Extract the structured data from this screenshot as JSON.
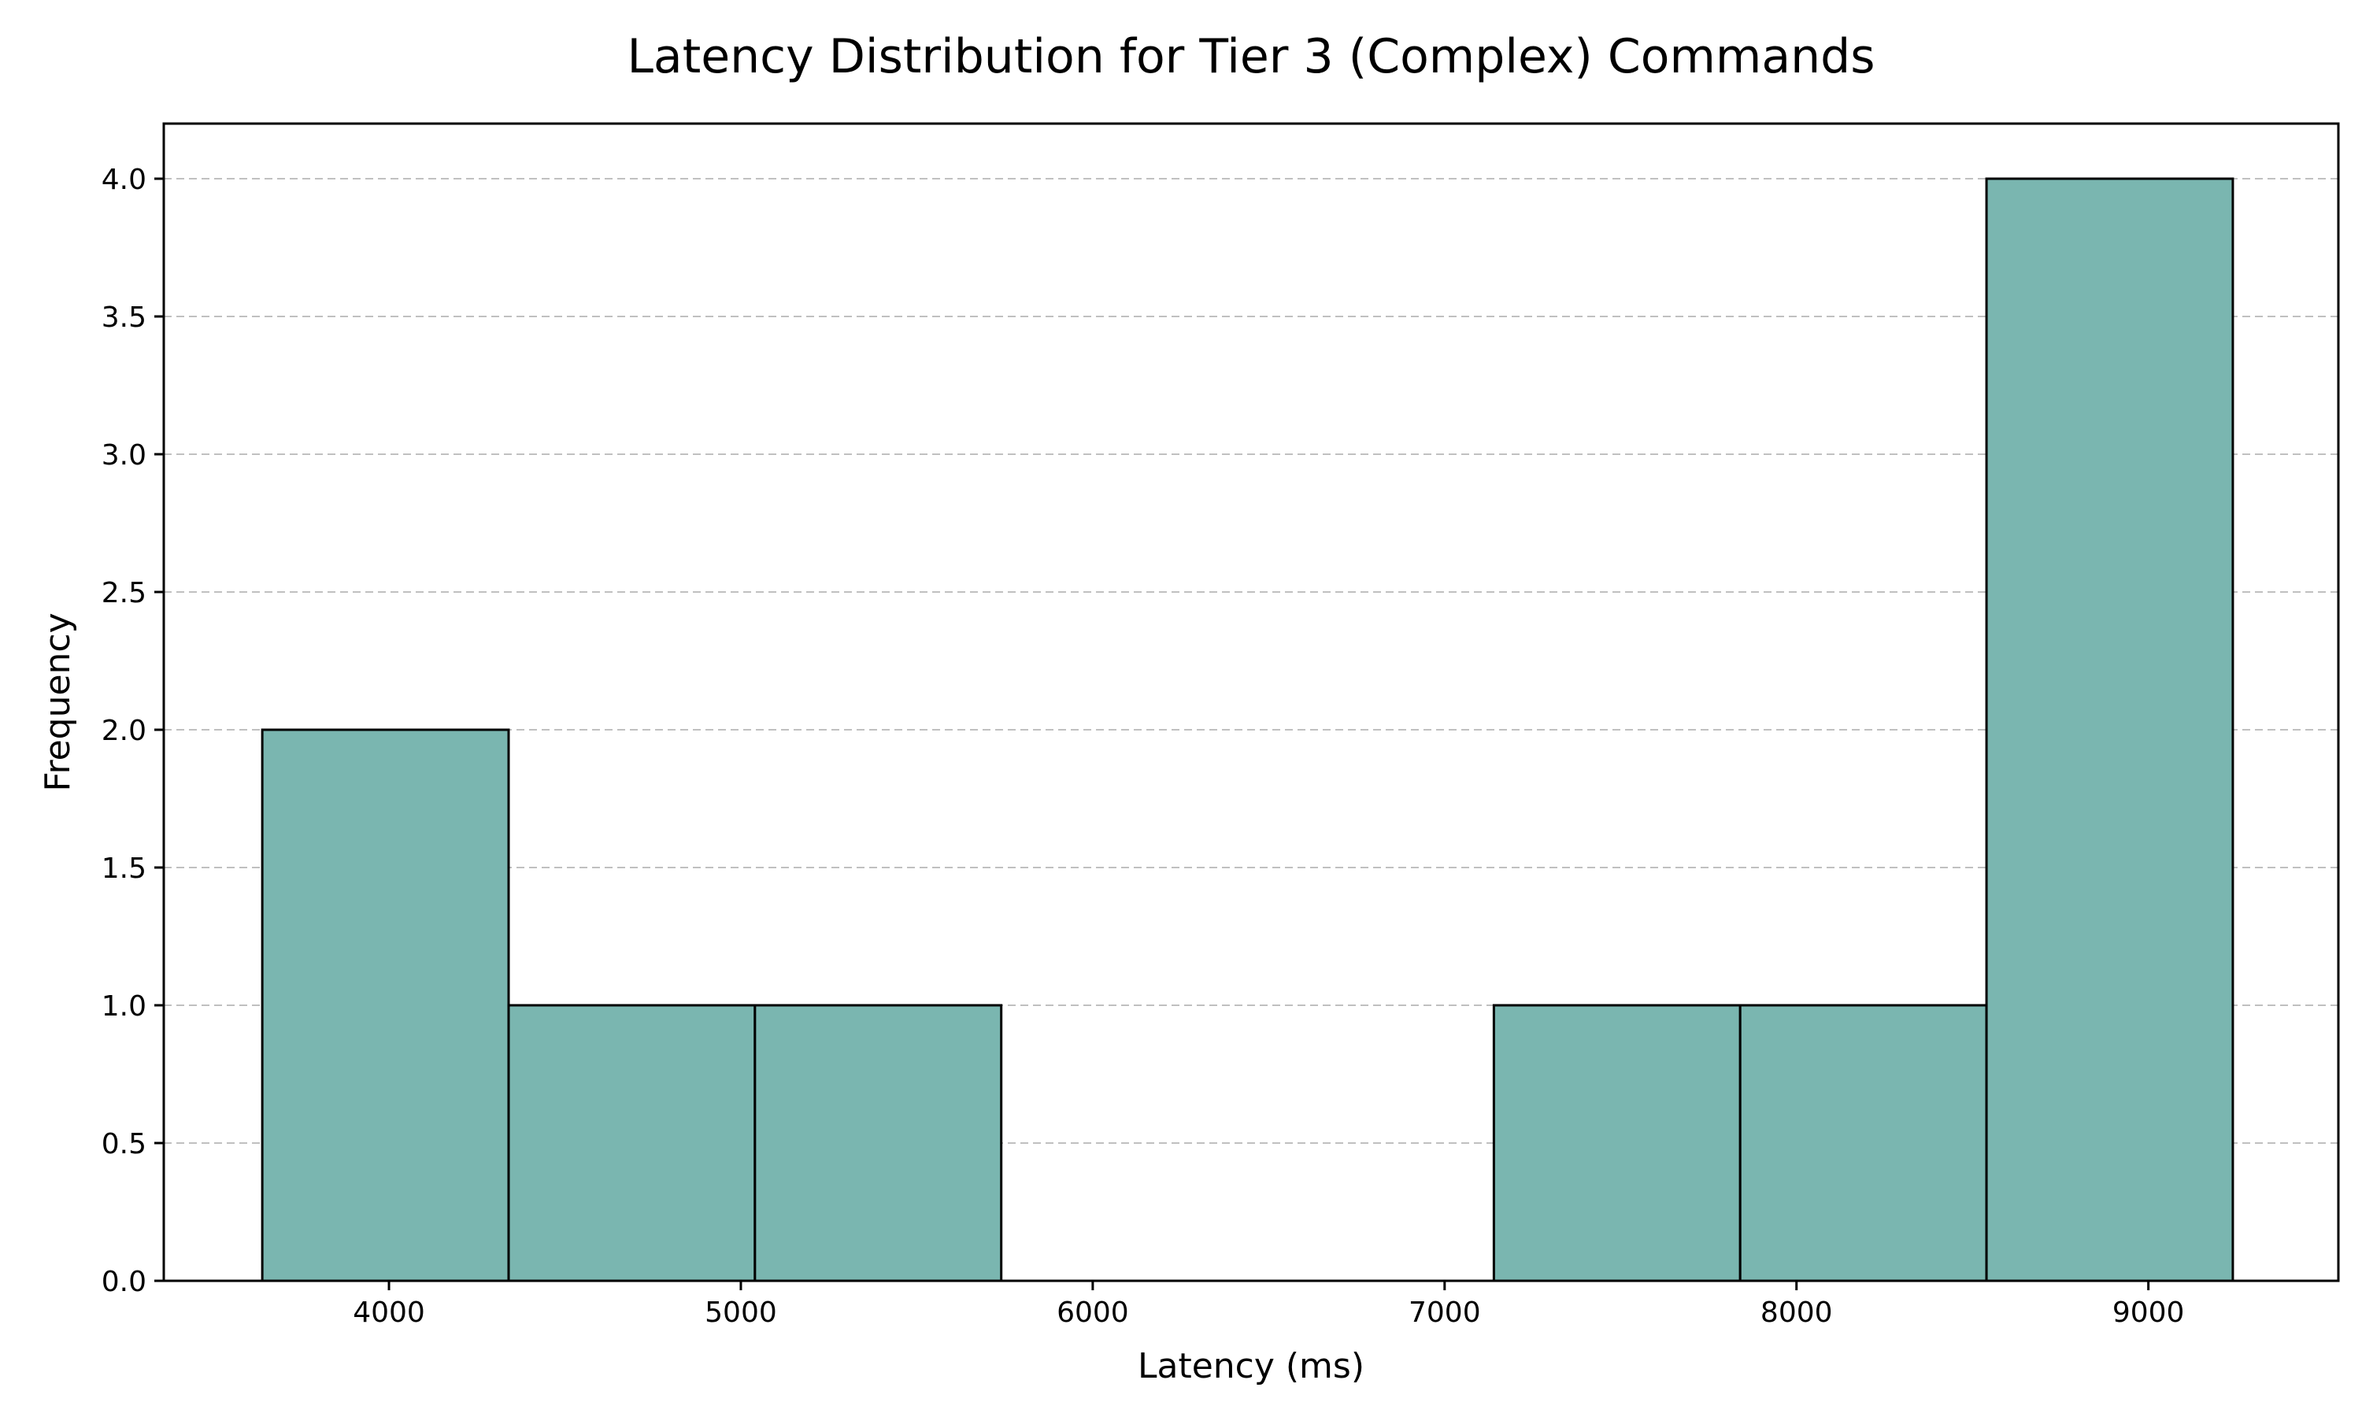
{
  "chart_data": {
    "type": "bar",
    "title": "Latency Distribution for Tier 3 (Complex) Commands",
    "xlabel": "Latency (ms)",
    "ylabel": "Frequency",
    "xlim": [
      3360,
      9540
    ],
    "ylim": [
      0,
      4.2
    ],
    "bins": [
      {
        "start": 3640,
        "end": 4340,
        "count": 2
      },
      {
        "start": 4340,
        "end": 5040,
        "count": 1
      },
      {
        "start": 5040,
        "end": 5740,
        "count": 1
      },
      {
        "start": 5740,
        "end": 6440,
        "count": 0
      },
      {
        "start": 6440,
        "end": 7140,
        "count": 0
      },
      {
        "start": 7140,
        "end": 7840,
        "count": 1
      },
      {
        "start": 7840,
        "end": 8540,
        "count": 1
      },
      {
        "start": 8540,
        "end": 9240,
        "count": 4
      }
    ],
    "x_ticks": [
      4000,
      5000,
      6000,
      7000,
      8000,
      9000
    ],
    "x_tick_labels": [
      "4000",
      "5000",
      "6000",
      "7000",
      "8000",
      "9000"
    ],
    "y_ticks": [
      0.0,
      0.5,
      1.0,
      1.5,
      2.0,
      2.5,
      3.0,
      3.5,
      4.0
    ],
    "y_tick_labels": [
      "0.0",
      "0.5",
      "1.0",
      "1.5",
      "2.0",
      "2.5",
      "3.0",
      "3.5",
      "4.0"
    ],
    "grid": "y-dashed",
    "colors": {
      "bar_fill": "#7ab6b0",
      "bar_edge": "#000000",
      "grid": "#c0c0c0",
      "axes": "#000000"
    }
  }
}
